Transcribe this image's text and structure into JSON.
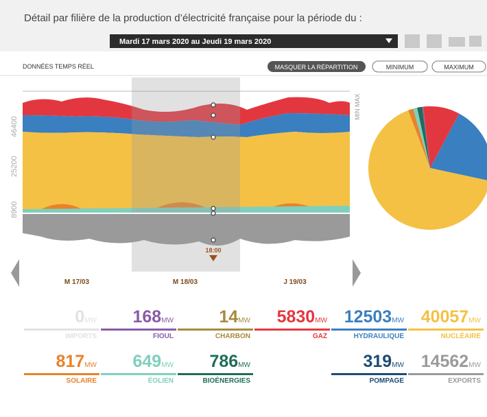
{
  "header": {
    "title": "Détail par filière de la production d’électricité française pour la période du :"
  },
  "period": {
    "label": "Mardi 17 mars 2020 au Jeudi 19 mars 2020"
  },
  "toolbar": {
    "mode": "DONNÉES TEMPS RÉEL",
    "buttons": [
      "MASQUER LA RÉPARTITION",
      "MINIMUM",
      "MAXIMUM"
    ]
  },
  "chart": {
    "yticks": [
      "46400",
      "25200",
      "8900"
    ],
    "side_label": "MIN MAX",
    "days": [
      "M 17/03",
      "M 18/03",
      "J 19/03"
    ],
    "cursor_time": "18:00"
  },
  "unit": "MW",
  "production": [
    {
      "name": "FIOUL",
      "value": 168,
      "color": "#8a5aa6"
    },
    {
      "name": "CHARBON",
      "value": 14,
      "color": "#a88a3c"
    },
    {
      "name": "GAZ",
      "value": 5830,
      "color": "#e3373f"
    },
    {
      "name": "HYDRAULIQUE",
      "value": 12503,
      "color": "#3a7fbf"
    },
    {
      "name": "NUCLÉAIRE",
      "value": 40057,
      "color": "#f4c145"
    },
    {
      "name": "SOLAIRE",
      "value": 817,
      "color": "#e8822a"
    },
    {
      "name": "ÉOLIEN",
      "value": 649,
      "color": "#7fcfbd"
    },
    {
      "name": "BIOÉNERGIES",
      "value": 786,
      "color": "#1f6d58"
    }
  ],
  "exchanges": [
    {
      "name": "IMPORTS",
      "value": 0,
      "color": "#e2e2e2"
    },
    {
      "name": "POMPAGE",
      "value": 319,
      "color": "#1c4c73"
    },
    {
      "name": "EXPORTS",
      "value": 14562,
      "color": "#9a9a9a"
    }
  ]
}
